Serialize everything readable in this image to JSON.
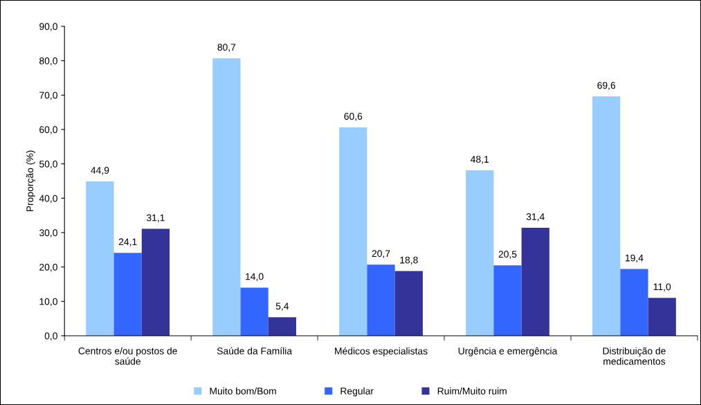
{
  "chart_data": {
    "type": "bar",
    "ylabel": "Proporção (%)",
    "categories": [
      "Centros e/ou postos de saúde",
      "Saúde da Família",
      "Médicos especialistas",
      "Urgência e emergência",
      "Distribuição de medicamentos"
    ],
    "series": [
      {
        "name": "Muito bom/Bom",
        "color": "#99ccff",
        "values": [
          44.9,
          80.7,
          60.6,
          48.1,
          69.6
        ],
        "value_labels": [
          "44,9",
          "80,7",
          "60,6",
          "48,1",
          "69,6"
        ]
      },
      {
        "name": "Regular",
        "color": "#3366ff",
        "values": [
          24.1,
          14.0,
          20.7,
          20.5,
          19.4
        ],
        "value_labels": [
          "24,1",
          "14,0",
          "20,7",
          "20,5",
          "19,4"
        ]
      },
      {
        "name": "Ruim/Muito ruim",
        "color": "#333399",
        "values": [
          31.1,
          5.4,
          18.8,
          31.4,
          11.0
        ],
        "value_labels": [
          "31,1",
          "5,4",
          "18,8",
          "31,4",
          "11,0"
        ]
      }
    ],
    "ylim": [
      0,
      90
    ],
    "yticks": [
      {
        "value": 0,
        "label": "0,0"
      },
      {
        "value": 10,
        "label": "10,0"
      },
      {
        "value": 20,
        "label": "20,0"
      },
      {
        "value": 30,
        "label": "30,0"
      },
      {
        "value": 40,
        "label": "40,0"
      },
      {
        "value": 50,
        "label": "50,0"
      },
      {
        "value": 60,
        "label": "60,0"
      },
      {
        "value": 70,
        "label": "70,0"
      },
      {
        "value": 80,
        "label": "80,0"
      },
      {
        "value": 90,
        "label": "90,0"
      }
    ],
    "grid": false,
    "legend": "bottom"
  }
}
